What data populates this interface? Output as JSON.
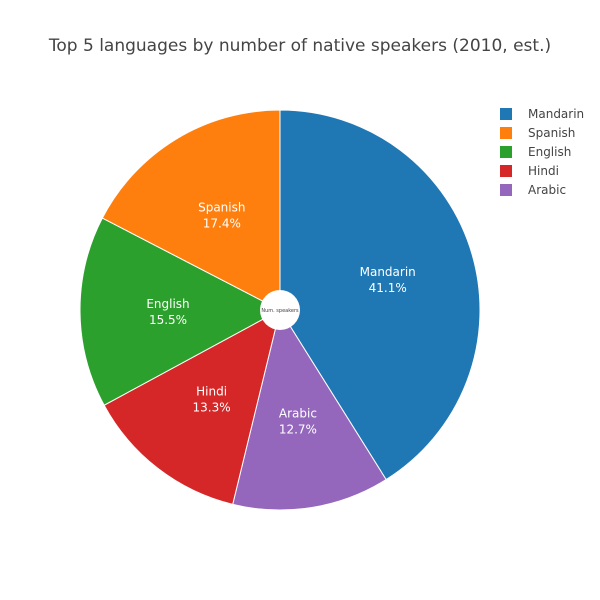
{
  "chart_data": {
    "type": "pie",
    "title": "Top 5 languages by number of native speakers (2010, est.)",
    "hole_label": "Num. speakers",
    "slices": [
      {
        "name": "Mandarin",
        "percent_label": "41.1%",
        "value": 41.1,
        "color": "#1f77b4"
      },
      {
        "name": "Arabic",
        "percent_label": "12.7%",
        "value": 12.7,
        "color": "#9467bd"
      },
      {
        "name": "Hindi",
        "percent_label": "13.3%",
        "value": 13.3,
        "color": "#d62728"
      },
      {
        "name": "English",
        "percent_label": "15.5%",
        "value": 15.5,
        "color": "#2ca02c"
      },
      {
        "name": "Spanish",
        "percent_label": "17.4%",
        "value": 17.4,
        "color": "#ff7f0e"
      }
    ],
    "legend": {
      "placement": "top-right",
      "entries": [
        {
          "name": "Mandarin",
          "color": "#1f77b4"
        },
        {
          "name": "Spanish",
          "color": "#ff7f0e"
        },
        {
          "name": "English",
          "color": "#2ca02c"
        },
        {
          "name": "Hindi",
          "color": "#d62728"
        },
        {
          "name": "Arabic",
          "color": "#9467bd"
        }
      ]
    }
  }
}
